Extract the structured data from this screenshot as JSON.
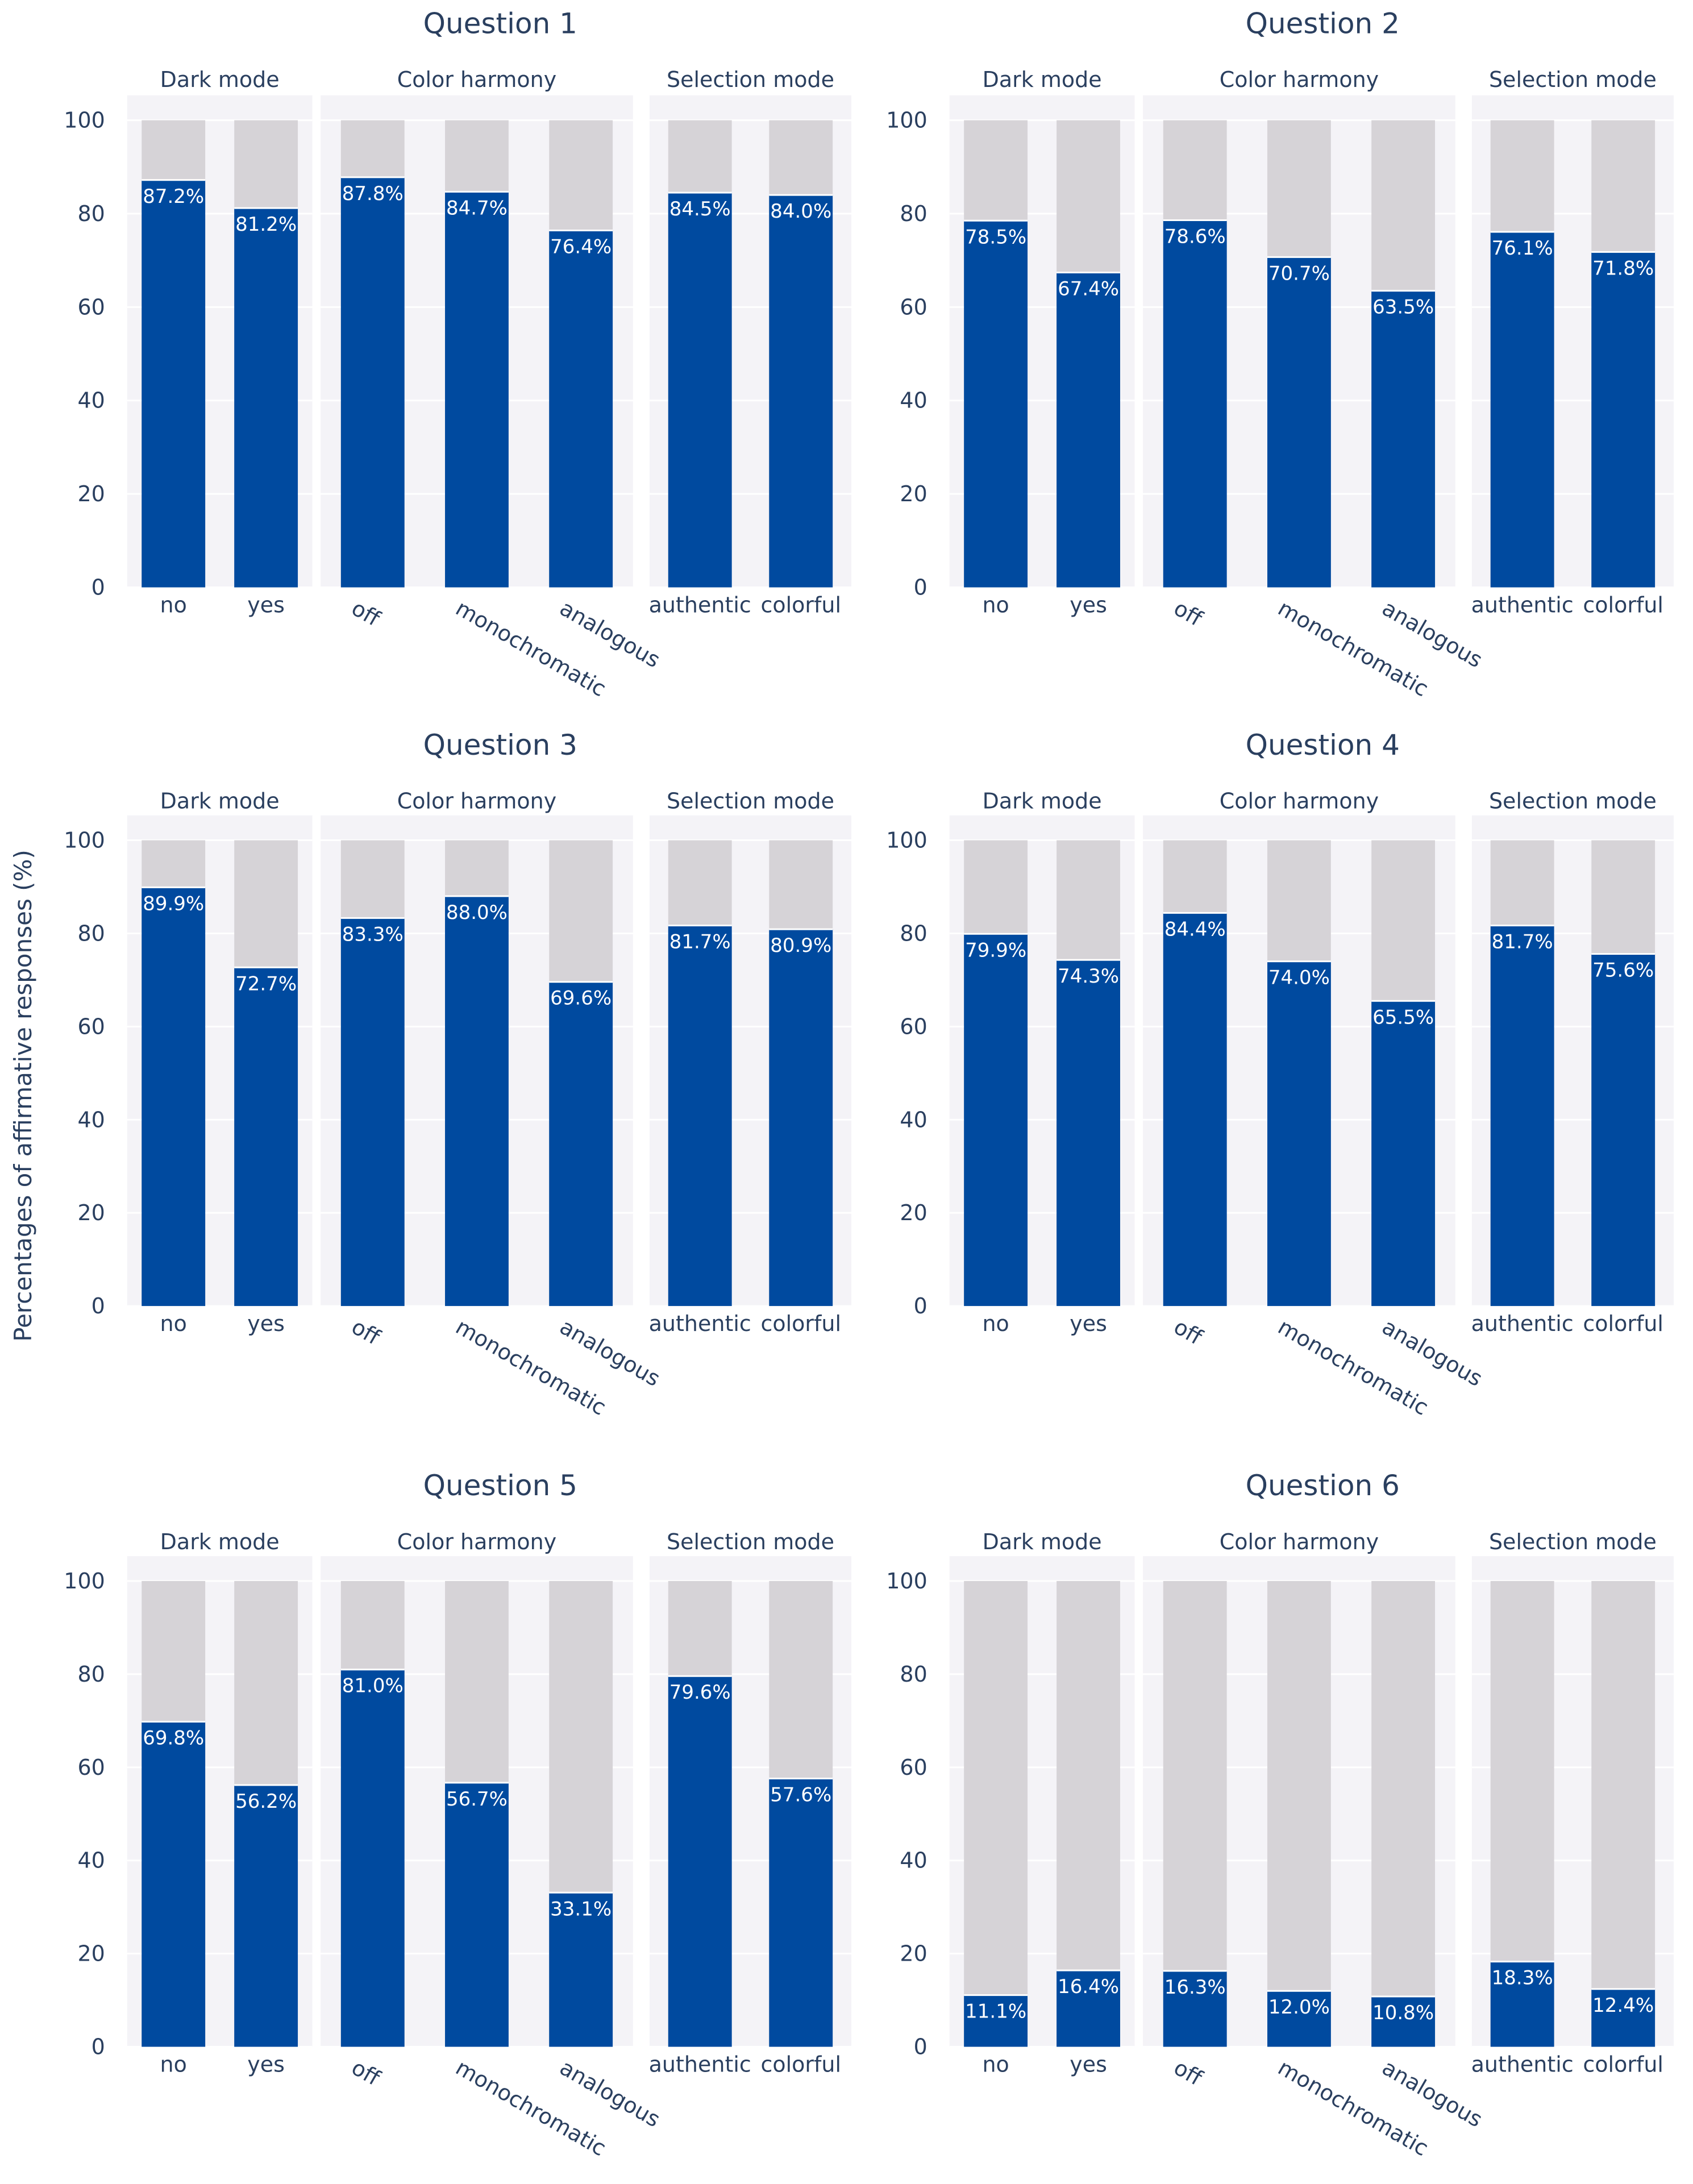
{
  "figure": {
    "ylabel": "Percentages of affirmative responses (%)",
    "colors": {
      "affirmative": "#004a9f",
      "remainder": "#d6d3d7",
      "panel_bg": "#f4f3f7",
      "grid": "#ffffff",
      "text": "#2a3f5f"
    }
  },
  "chart_data": [
    {
      "type": "bar",
      "title": "Question 1",
      "ylim": [
        0,
        100
      ],
      "yticks": [
        "0",
        "20",
        "40",
        "60",
        "80",
        "100"
      ],
      "panels": [
        {
          "title": "Dark mode",
          "categories": [
            "no",
            "yes"
          ],
          "values": [
            87.2,
            81.2
          ],
          "labels": [
            "87.2%",
            "81.2%"
          ]
        },
        {
          "title": "Color harmony",
          "categories": [
            "off",
            "monochromatic",
            "analogous"
          ],
          "values": [
            87.8,
            84.7,
            76.4
          ],
          "labels": [
            "87.8%",
            "84.7%",
            "76.4%"
          ]
        },
        {
          "title": "Selection mode",
          "categories": [
            "authentic",
            "colorful"
          ],
          "values": [
            84.5,
            84.0
          ],
          "labels": [
            "84.5%",
            "84.0%"
          ]
        }
      ]
    },
    {
      "type": "bar",
      "title": "Question 2",
      "ylim": [
        0,
        100
      ],
      "yticks": [
        "0",
        "20",
        "40",
        "60",
        "80",
        "100"
      ],
      "panels": [
        {
          "title": "Dark mode",
          "categories": [
            "no",
            "yes"
          ],
          "values": [
            78.5,
            67.4
          ],
          "labels": [
            "78.5%",
            "67.4%"
          ]
        },
        {
          "title": "Color harmony",
          "categories": [
            "off",
            "monochromatic",
            "analogous"
          ],
          "values": [
            78.6,
            70.7,
            63.5
          ],
          "labels": [
            "78.6%",
            "70.7%",
            "63.5%"
          ]
        },
        {
          "title": "Selection mode",
          "categories": [
            "authentic",
            "colorful"
          ],
          "values": [
            76.1,
            71.8
          ],
          "labels": [
            "76.1%",
            "71.8%"
          ]
        }
      ]
    },
    {
      "type": "bar",
      "title": "Question 3",
      "ylim": [
        0,
        100
      ],
      "yticks": [
        "0",
        "20",
        "40",
        "60",
        "80",
        "100"
      ],
      "panels": [
        {
          "title": "Dark mode",
          "categories": [
            "no",
            "yes"
          ],
          "values": [
            89.9,
            72.7
          ],
          "labels": [
            "89.9%",
            "72.7%"
          ]
        },
        {
          "title": "Color harmony",
          "categories": [
            "off",
            "monochromatic",
            "analogous"
          ],
          "values": [
            83.3,
            88.0,
            69.6
          ],
          "labels": [
            "83.3%",
            "88.0%",
            "69.6%"
          ]
        },
        {
          "title": "Selection mode",
          "categories": [
            "authentic",
            "colorful"
          ],
          "values": [
            81.7,
            80.9
          ],
          "labels": [
            "81.7%",
            "80.9%"
          ]
        }
      ]
    },
    {
      "type": "bar",
      "title": "Question 4",
      "ylim": [
        0,
        100
      ],
      "yticks": [
        "0",
        "20",
        "40",
        "60",
        "80",
        "100"
      ],
      "panels": [
        {
          "title": "Dark mode",
          "categories": [
            "no",
            "yes"
          ],
          "values": [
            79.9,
            74.3
          ],
          "labels": [
            "79.9%",
            "74.3%"
          ]
        },
        {
          "title": "Color harmony",
          "categories": [
            "off",
            "monochromatic",
            "analogous"
          ],
          "values": [
            84.4,
            74.0,
            65.5
          ],
          "labels": [
            "84.4%",
            "74.0%",
            "65.5%"
          ]
        },
        {
          "title": "Selection mode",
          "categories": [
            "authentic",
            "colorful"
          ],
          "values": [
            81.7,
            75.6
          ],
          "labels": [
            "81.7%",
            "75.6%"
          ]
        }
      ]
    },
    {
      "type": "bar",
      "title": "Question 5",
      "ylim": [
        0,
        100
      ],
      "yticks": [
        "0",
        "20",
        "40",
        "60",
        "80",
        "100"
      ],
      "panels": [
        {
          "title": "Dark mode",
          "categories": [
            "no",
            "yes"
          ],
          "values": [
            69.8,
            56.2
          ],
          "labels": [
            "69.8%",
            "56.2%"
          ]
        },
        {
          "title": "Color harmony",
          "categories": [
            "off",
            "monochromatic",
            "analogous"
          ],
          "values": [
            81.0,
            56.7,
            33.1
          ],
          "labels": [
            "81.0%",
            "56.7%",
            "33.1%"
          ]
        },
        {
          "title": "Selection mode",
          "categories": [
            "authentic",
            "colorful"
          ],
          "values": [
            79.6,
            57.6
          ],
          "labels": [
            "79.6%",
            "57.6%"
          ]
        }
      ]
    },
    {
      "type": "bar",
      "title": "Question 6",
      "ylim": [
        0,
        100
      ],
      "yticks": [
        "0",
        "20",
        "40",
        "60",
        "80",
        "100"
      ],
      "panels": [
        {
          "title": "Dark mode",
          "categories": [
            "no",
            "yes"
          ],
          "values": [
            11.1,
            16.4
          ],
          "labels": [
            "11.1%",
            "16.4%"
          ]
        },
        {
          "title": "Color harmony",
          "categories": [
            "off",
            "monochromatic",
            "analogous"
          ],
          "values": [
            16.3,
            12.0,
            10.8
          ],
          "labels": [
            "16.3%",
            "12.0%",
            "10.8%"
          ]
        },
        {
          "title": "Selection mode",
          "categories": [
            "authentic",
            "colorful"
          ],
          "values": [
            18.3,
            12.4
          ],
          "labels": [
            "18.3%",
            "12.4%"
          ]
        }
      ]
    }
  ]
}
